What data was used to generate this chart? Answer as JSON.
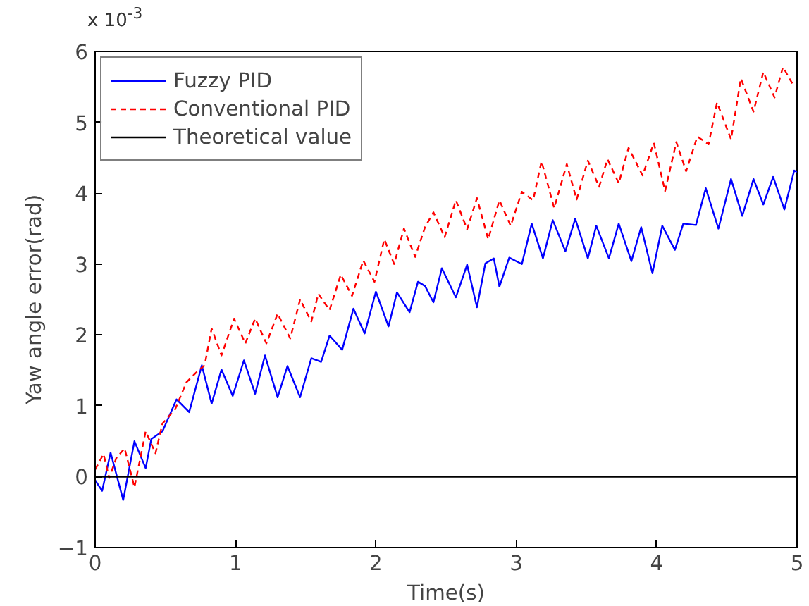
{
  "chart_data": {
    "type": "line",
    "xlabel": "Time(s)",
    "ylabel": "Yaw angle error(rad)",
    "annotations": [
      "x 10$^{-3}$"
    ],
    "xlim": [
      0,
      5
    ],
    "xticks": [
      0,
      1,
      2,
      3,
      4,
      5
    ],
    "ylim": [
      -1,
      6
    ],
    "yticks": [
      -1,
      0,
      1,
      2,
      3,
      4,
      5,
      6
    ],
    "grid": false,
    "legend": "top left",
    "series": [
      {
        "name": "Fuzzy PID",
        "color": "#0000ff",
        "line_style": "solid",
        "x": [
          0,
          0.05,
          0.11,
          0.2,
          0.28,
          0.36,
          0.4,
          0.48,
          0.58,
          0.67,
          0.76,
          0.83,
          0.9,
          0.98,
          1.06,
          1.14,
          1.21,
          1.3,
          1.37,
          1.46,
          1.54,
          1.61,
          1.67,
          1.76,
          1.84,
          1.92,
          2.0,
          2.09,
          2.15,
          2.24,
          2.3,
          2.35,
          2.41,
          2.47,
          2.57,
          2.65,
          2.72,
          2.78,
          2.84,
          2.88,
          2.95,
          3.04,
          3.11,
          3.19,
          3.26,
          3.35,
          3.42,
          3.51,
          3.57,
          3.66,
          3.73,
          3.82,
          3.89,
          3.97,
          4.04,
          4.13,
          4.19,
          4.28,
          4.35,
          4.44,
          4.53,
          4.61,
          4.69,
          4.76,
          4.83,
          4.91,
          4.98,
          5.0
        ],
        "values": [
          -0.05,
          -0.2,
          0.34,
          -0.33,
          0.5,
          0.12,
          0.53,
          0.64,
          1.09,
          0.91,
          1.57,
          1.03,
          1.51,
          1.14,
          1.64,
          1.17,
          1.71,
          1.12,
          1.56,
          1.12,
          1.67,
          1.62,
          1.99,
          1.79,
          2.37,
          2.02,
          2.61,
          2.12,
          2.6,
          2.32,
          2.75,
          2.69,
          2.46,
          2.94,
          2.53,
          2.99,
          2.39,
          3.01,
          3.08,
          2.68,
          3.09,
          3.0,
          3.57,
          3.08,
          3.62,
          3.18,
          3.64,
          3.08,
          3.54,
          3.08,
          3.57,
          3.04,
          3.52,
          2.87,
          3.54,
          3.2,
          3.57,
          3.55,
          4.07,
          3.5,
          4.2,
          3.68,
          4.2,
          3.84,
          4.23,
          3.77,
          4.32,
          4.3
        ]
      },
      {
        "name": "Conventional PID",
        "color": "#ff0000",
        "line_style": "dashed",
        "x": [
          0,
          0.06,
          0.1,
          0.15,
          0.21,
          0.28,
          0.36,
          0.43,
          0.48,
          0.57,
          0.65,
          0.72,
          0.78,
          0.83,
          0.9,
          0.99,
          1.07,
          1.14,
          1.22,
          1.3,
          1.39,
          1.46,
          1.54,
          1.59,
          1.67,
          1.75,
          1.83,
          1.91,
          1.99,
          2.06,
          2.13,
          2.2,
          2.28,
          2.35,
          2.41,
          2.49,
          2.57,
          2.65,
          2.72,
          2.8,
          2.88,
          2.96,
          3.04,
          3.12,
          3.18,
          3.27,
          3.36,
          3.43,
          3.51,
          3.59,
          3.65,
          3.73,
          3.8,
          3.9,
          3.98,
          4.06,
          4.14,
          4.21,
          4.29,
          4.37,
          4.43,
          4.53,
          4.6,
          4.69,
          4.76,
          4.84,
          4.9,
          4.98
        ],
        "values": [
          0.1,
          0.32,
          -0.02,
          0.26,
          0.4,
          -0.15,
          0.64,
          0.33,
          0.75,
          0.95,
          1.33,
          1.47,
          1.57,
          2.09,
          1.71,
          2.23,
          1.88,
          2.23,
          1.88,
          2.3,
          1.95,
          2.5,
          2.19,
          2.58,
          2.35,
          2.85,
          2.55,
          3.05,
          2.75,
          3.35,
          3.0,
          3.5,
          3.1,
          3.52,
          3.73,
          3.38,
          3.9,
          3.49,
          3.93,
          3.35,
          3.9,
          3.54,
          4.02,
          3.9,
          4.45,
          3.79,
          4.41,
          3.91,
          4.46,
          4.09,
          4.48,
          4.14,
          4.64,
          4.25,
          4.71,
          4.03,
          4.72,
          4.31,
          4.8,
          4.69,
          5.28,
          4.76,
          5.62,
          5.15,
          5.71,
          5.35,
          5.78,
          5.5
        ]
      },
      {
        "name": "Theoretical value",
        "color": "#000000",
        "line_style": "solid",
        "x": [
          0,
          5
        ],
        "values": [
          0,
          0
        ]
      }
    ]
  }
}
